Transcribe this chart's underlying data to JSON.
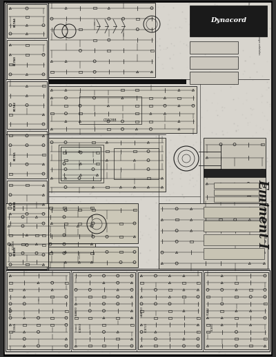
{
  "title": "DYNACORD Eminent I (schematic)",
  "bg_color": "#888888",
  "figsize": [
    4.0,
    5.18
  ],
  "dpi": 100,
  "paper_color": "#d8d5ce",
  "paper_color2": "#ccc9c0",
  "dark_line": "#1a1a1a",
  "mid_gray": "#888880",
  "light_gray": "#b8b4aa",
  "text_eminent": "Eminent I",
  "text_dynacord": "Dynacord",
  "seed": 17,
  "outer_border_color": "#000000",
  "schematic_bg": "#c8c4bb"
}
